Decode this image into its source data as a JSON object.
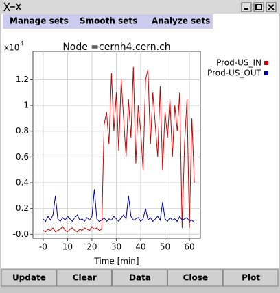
{
  "menu": [
    "Manage sets",
    "Smooth sets",
    "Analyze sets"
  ],
  "buttons": [
    "Update",
    "Clear",
    "Data",
    "Close",
    "Plot"
  ],
  "chart_data": {
    "type": "line",
    "title": "Node =cernh4.cern.ch",
    "xlabel": "Time [min]",
    "y_scale_label": "x10",
    "y_scale_exponent": "4",
    "legend": "right",
    "grid": true,
    "x": [
      0,
      1,
      2,
      3,
      4,
      5,
      6,
      7,
      8,
      9,
      10,
      11,
      12,
      13,
      14,
      15,
      16,
      17,
      18,
      19,
      20,
      21,
      22,
      23,
      24,
      25,
      26,
      27,
      28,
      29,
      30,
      31,
      32,
      33,
      34,
      35,
      36,
      37,
      38,
      39,
      40,
      41,
      42,
      43,
      44,
      45,
      46,
      47,
      48,
      49,
      50,
      51,
      52,
      53,
      54,
      55,
      56,
      57,
      58,
      59,
      60,
      61,
      62
    ],
    "series": [
      {
        "name": "Prod-US_IN",
        "color": "#cc0000",
        "values": [
          0.03,
          0.02,
          0.04,
          0.03,
          0.05,
          0.02,
          0.03,
          0.04,
          0.06,
          0.03,
          0.02,
          0.04,
          0.05,
          0.03,
          0.02,
          0.04,
          0.03,
          0.05,
          0.04,
          0.03,
          0.06,
          0.04,
          0.05,
          0.03,
          0.04,
          0.85,
          0.95,
          0.7,
          1.25,
          0.8,
          1.1,
          0.65,
          1.2,
          0.9,
          0.6,
          1.05,
          0.75,
          1.3,
          0.55,
          1.0,
          0.8,
          0.5,
          1.2,
          1.28,
          0.7,
          1.1,
          0.85,
          0.6,
          1.15,
          0.5,
          0.95,
          0.75,
          1.05,
          0.6,
          1.0,
          0.8,
          1.1,
          0.05,
          0.7,
          1.05,
          0.05,
          0.9,
          0.4
        ]
      },
      {
        "name": "Prod-US_OUT",
        "color": "#000099",
        "values": [
          0.12,
          0.1,
          0.14,
          0.11,
          0.15,
          0.3,
          0.12,
          0.1,
          0.13,
          0.11,
          0.14,
          0.12,
          0.1,
          0.13,
          0.15,
          0.11,
          0.12,
          0.1,
          0.13,
          0.11,
          0.14,
          0.35,
          0.12,
          0.1,
          0.11,
          0.13,
          0.1,
          0.12,
          0.11,
          0.14,
          0.12,
          0.1,
          0.13,
          0.15,
          0.12,
          0.3,
          0.14,
          0.11,
          0.12,
          0.13,
          0.1,
          0.12,
          0.2,
          0.11,
          0.13,
          0.1,
          0.12,
          0.14,
          0.11,
          0.25,
          0.12,
          0.1,
          0.13,
          0.11,
          0.12,
          0.1,
          0.14,
          0.11,
          0.12,
          0.13,
          0.1,
          0.11,
          0.09
        ]
      }
    ],
    "xlim": [
      -4.2,
      64.5
    ],
    "xticks": [
      {
        "value": 0,
        "label": "-0"
      },
      10,
      20,
      30,
      40,
      50,
      60
    ],
    "ylim": [
      -0.03,
      1.42
    ],
    "yticks": [
      {
        "value": 0,
        "label": "-0.0"
      },
      0.2,
      0.4,
      0.6,
      0.8,
      1.0,
      1.2
    ]
  }
}
